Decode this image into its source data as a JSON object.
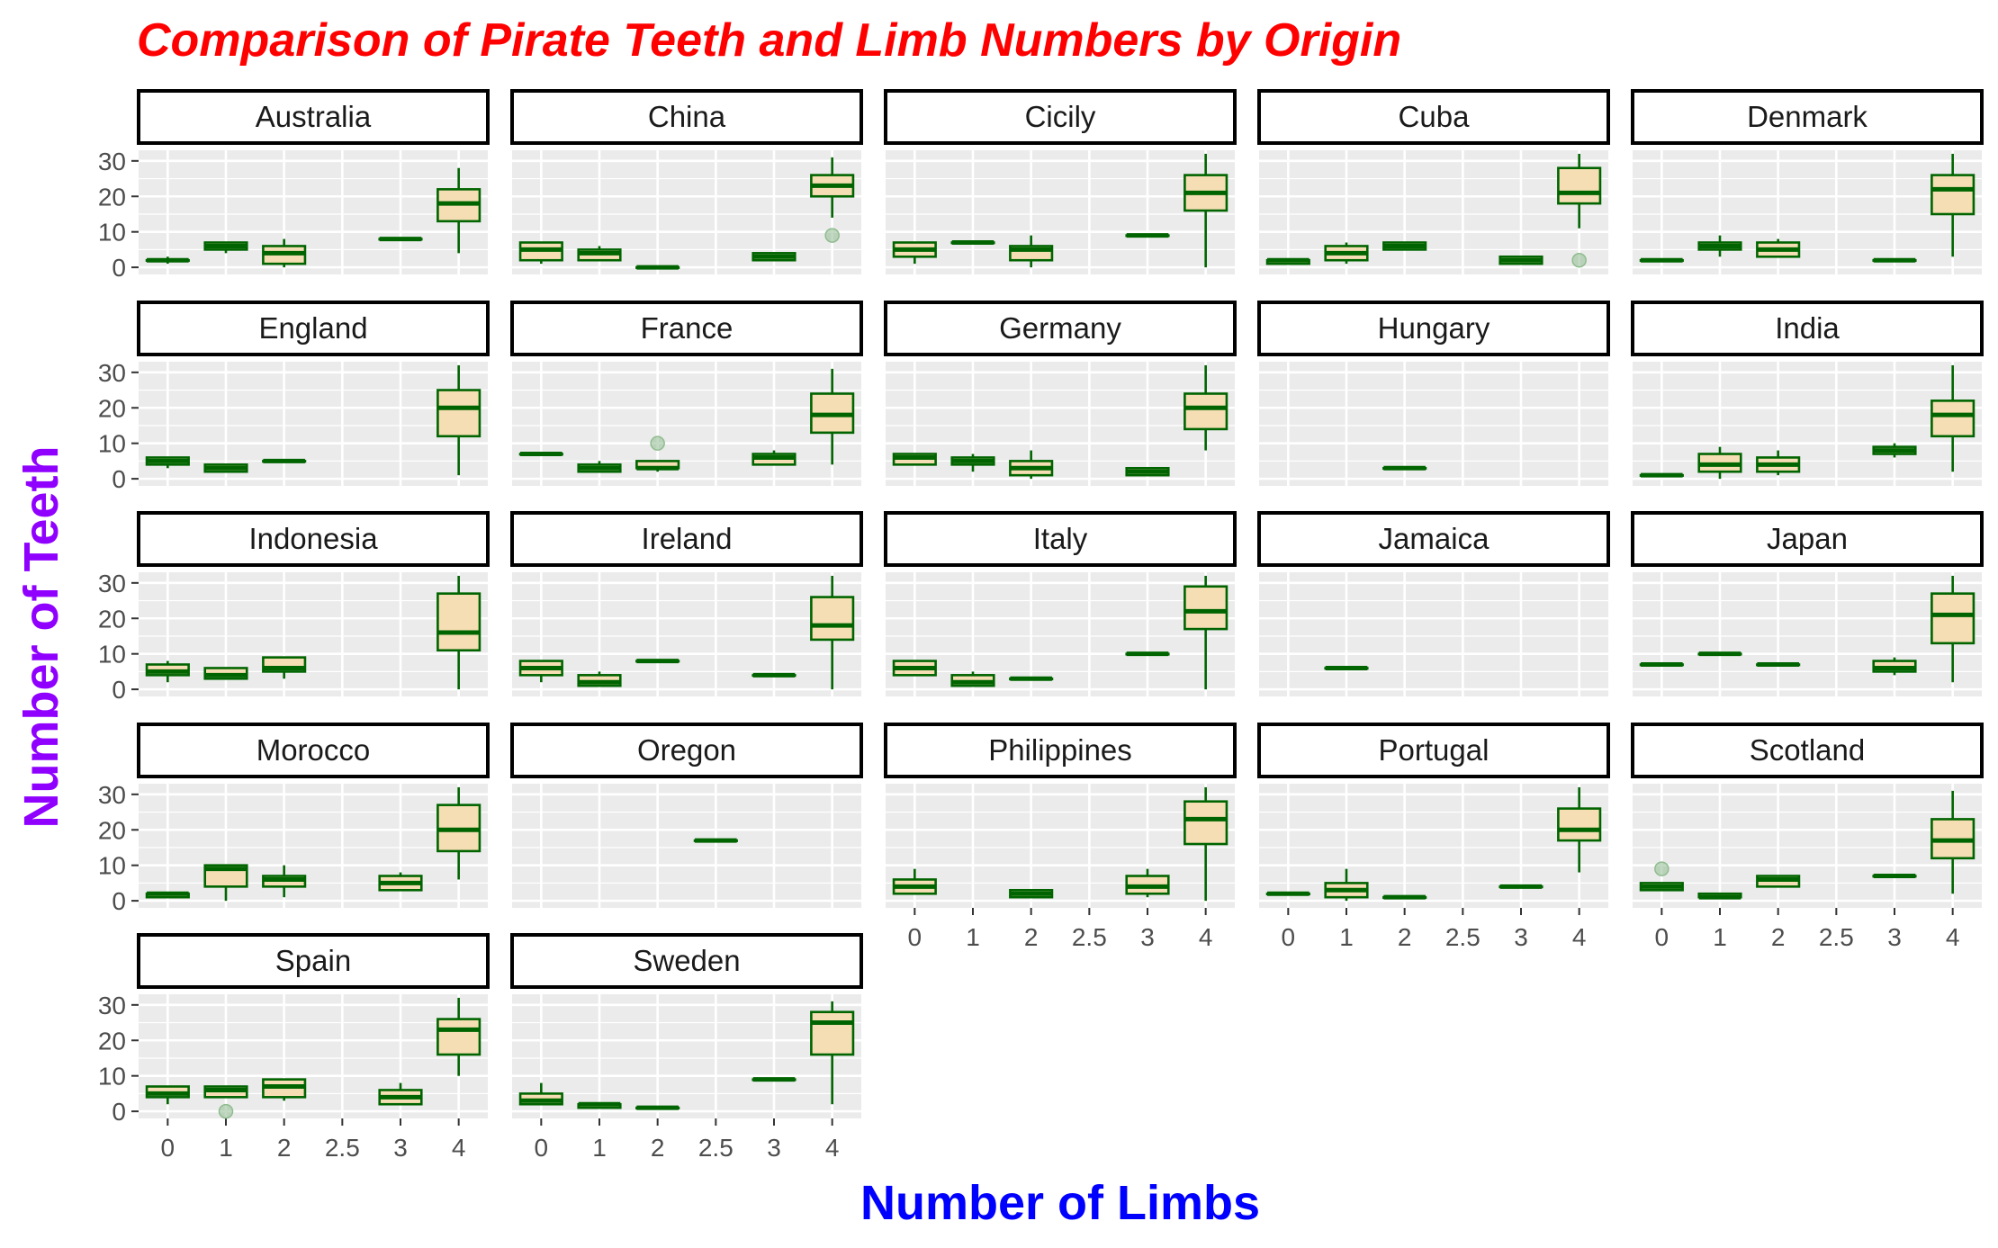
{
  "chart_data": {
    "type": "boxplot-facets",
    "title": "Comparison of Pirate Teeth and Limb Numbers by Origin",
    "xlabel": "Number of Limbs",
    "ylabel": "Number of Teeth",
    "x_ticks": [
      "0",
      "1",
      "2",
      "2.5",
      "3",
      "4"
    ],
    "y_ticks": [
      0,
      10,
      20,
      30
    ],
    "ylim": [
      -2,
      33
    ],
    "colors": {
      "title": "#ff0000",
      "xlabel": "#0000ff",
      "ylabel": "#8f00ff",
      "box_fill": "#f5deb3",
      "box_line": "#006400",
      "panel_bg": "#ebebeb",
      "grid": "#ffffff",
      "outlier": "#8fbc8f"
    },
    "panels": [
      {
        "name": "Australia",
        "boxes": [
          {
            "x": "0",
            "min": 1,
            "q1": 2,
            "median": 2,
            "q3": 2,
            "max": 3
          },
          {
            "x": "1",
            "min": 4,
            "q1": 5,
            "median": 6,
            "q3": 7,
            "max": 7
          },
          {
            "x": "2",
            "min": 0,
            "q1": 1,
            "median": 4,
            "q3": 6,
            "max": 8
          },
          {
            "x": "3",
            "min": 8,
            "q1": 8,
            "median": 8,
            "q3": 8,
            "max": 8
          },
          {
            "x": "4",
            "min": 4,
            "q1": 13,
            "median": 18,
            "q3": 22,
            "max": 28
          }
        ]
      },
      {
        "name": "China",
        "boxes": [
          {
            "x": "0",
            "min": 1,
            "q1": 2,
            "median": 5,
            "q3": 7,
            "max": 7
          },
          {
            "x": "1",
            "min": 2,
            "q1": 2,
            "median": 4,
            "q3": 5,
            "max": 6
          },
          {
            "x": "2",
            "min": 0,
            "q1": 0,
            "median": 0,
            "q3": 0,
            "max": 0
          },
          {
            "x": "3",
            "min": 2,
            "q1": 2,
            "median": 3,
            "q3": 4,
            "max": 4
          },
          {
            "x": "4",
            "min": 14,
            "q1": 20,
            "median": 23,
            "q3": 26,
            "max": 31,
            "outliers": [
              9
            ]
          }
        ]
      },
      {
        "name": "Cicily",
        "boxes": [
          {
            "x": "0",
            "min": 1,
            "q1": 3,
            "median": 5,
            "q3": 7,
            "max": 7
          },
          {
            "x": "1",
            "min": 7,
            "q1": 7,
            "median": 7,
            "q3": 7,
            "max": 7
          },
          {
            "x": "2",
            "min": 0,
            "q1": 2,
            "median": 5,
            "q3": 6,
            "max": 9
          },
          {
            "x": "3",
            "min": 9,
            "q1": 9,
            "median": 9,
            "q3": 9,
            "max": 9
          },
          {
            "x": "4",
            "min": 0,
            "q1": 16,
            "median": 21,
            "q3": 26,
            "max": 32
          }
        ]
      },
      {
        "name": "Cuba",
        "boxes": [
          {
            "x": "0",
            "min": 1,
            "q1": 1,
            "median": 2,
            "q3": 2,
            "max": 2
          },
          {
            "x": "1",
            "min": 1,
            "q1": 2,
            "median": 4,
            "q3": 6,
            "max": 7
          },
          {
            "x": "2",
            "min": 5,
            "q1": 5,
            "median": 6,
            "q3": 7,
            "max": 7
          },
          {
            "x": "3",
            "min": 1,
            "q1": 1,
            "median": 2,
            "q3": 3,
            "max": 3
          },
          {
            "x": "4",
            "min": 11,
            "q1": 18,
            "median": 21,
            "q3": 28,
            "max": 32,
            "outliers": [
              2
            ]
          }
        ]
      },
      {
        "name": "Denmark",
        "boxes": [
          {
            "x": "0",
            "min": 2,
            "q1": 2,
            "median": 2,
            "q3": 2,
            "max": 2
          },
          {
            "x": "1",
            "min": 3,
            "q1": 5,
            "median": 6,
            "q3": 7,
            "max": 9
          },
          {
            "x": "2",
            "min": 3,
            "q1": 3,
            "median": 5,
            "q3": 7,
            "max": 8
          },
          {
            "x": "3",
            "min": 2,
            "q1": 2,
            "median": 2,
            "q3": 2,
            "max": 2
          },
          {
            "x": "4",
            "min": 3,
            "q1": 15,
            "median": 22,
            "q3": 26,
            "max": 32
          }
        ]
      },
      {
        "name": "England",
        "boxes": [
          {
            "x": "0",
            "min": 3,
            "q1": 4,
            "median": 5,
            "q3": 6,
            "max": 6
          },
          {
            "x": "1",
            "min": 2,
            "q1": 2,
            "median": 3,
            "q3": 4,
            "max": 4
          },
          {
            "x": "2",
            "min": 5,
            "q1": 5,
            "median": 5,
            "q3": 5,
            "max": 5
          },
          {
            "x": "4",
            "min": 1,
            "q1": 12,
            "median": 20,
            "q3": 25,
            "max": 32
          }
        ]
      },
      {
        "name": "France",
        "boxes": [
          {
            "x": "0",
            "min": 7,
            "q1": 7,
            "median": 7,
            "q3": 7,
            "max": 7
          },
          {
            "x": "1",
            "min": 2,
            "q1": 2,
            "median": 3,
            "q3": 4,
            "max": 5
          },
          {
            "x": "2",
            "min": 2,
            "q1": 3,
            "median": 3,
            "q3": 5,
            "max": 5,
            "outliers": [
              10
            ]
          },
          {
            "x": "3",
            "min": 4,
            "q1": 4,
            "median": 6,
            "q3": 7,
            "max": 8
          },
          {
            "x": "4",
            "min": 4,
            "q1": 13,
            "median": 18,
            "q3": 24,
            "max": 31
          }
        ]
      },
      {
        "name": "Germany",
        "boxes": [
          {
            "x": "0",
            "min": 4,
            "q1": 4,
            "median": 6,
            "q3": 7,
            "max": 7
          },
          {
            "x": "1",
            "min": 2,
            "q1": 4,
            "median": 5,
            "q3": 6,
            "max": 7
          },
          {
            "x": "2",
            "min": 0,
            "q1": 1,
            "median": 3,
            "q3": 5,
            "max": 8
          },
          {
            "x": "3",
            "min": 1,
            "q1": 1,
            "median": 2,
            "q3": 3,
            "max": 3
          },
          {
            "x": "4",
            "min": 8,
            "q1": 14,
            "median": 20,
            "q3": 24,
            "max": 32
          }
        ]
      },
      {
        "name": "Hungary",
        "boxes": [
          {
            "x": "2",
            "min": 3,
            "q1": 3,
            "median": 3,
            "q3": 3,
            "max": 3
          }
        ]
      },
      {
        "name": "India",
        "boxes": [
          {
            "x": "0",
            "min": 1,
            "q1": 1,
            "median": 1,
            "q3": 1,
            "max": 1
          },
          {
            "x": "1",
            "min": 0,
            "q1": 2,
            "median": 4,
            "q3": 7,
            "max": 9
          },
          {
            "x": "2",
            "min": 1,
            "q1": 2,
            "median": 4,
            "q3": 6,
            "max": 8
          },
          {
            "x": "3",
            "min": 6,
            "q1": 7,
            "median": 8,
            "q3": 9,
            "max": 10
          },
          {
            "x": "4",
            "min": 2,
            "q1": 12,
            "median": 18,
            "q3": 22,
            "max": 32
          }
        ]
      },
      {
        "name": "Indonesia",
        "boxes": [
          {
            "x": "0",
            "min": 2,
            "q1": 4,
            "median": 5,
            "q3": 7,
            "max": 8
          },
          {
            "x": "1",
            "min": 3,
            "q1": 3,
            "median": 4,
            "q3": 6,
            "max": 6
          },
          {
            "x": "2",
            "min": 3,
            "q1": 5,
            "median": 6,
            "q3": 9,
            "max": 9
          },
          {
            "x": "4",
            "min": 0,
            "q1": 11,
            "median": 16,
            "q3": 27,
            "max": 32
          }
        ]
      },
      {
        "name": "Ireland",
        "boxes": [
          {
            "x": "0",
            "min": 2,
            "q1": 4,
            "median": 6,
            "q3": 8,
            "max": 8
          },
          {
            "x": "1",
            "min": 1,
            "q1": 1,
            "median": 2,
            "q3": 4,
            "max": 5
          },
          {
            "x": "2",
            "min": 8,
            "q1": 8,
            "median": 8,
            "q3": 8,
            "max": 8
          },
          {
            "x": "3",
            "min": 4,
            "q1": 4,
            "median": 4,
            "q3": 4,
            "max": 4
          },
          {
            "x": "4",
            "min": 0,
            "q1": 14,
            "median": 18,
            "q3": 26,
            "max": 32
          }
        ]
      },
      {
        "name": "Italy",
        "boxes": [
          {
            "x": "0",
            "min": 4,
            "q1": 4,
            "median": 6,
            "q3": 8,
            "max": 8
          },
          {
            "x": "1",
            "min": 1,
            "q1": 1,
            "median": 2,
            "q3": 4,
            "max": 5
          },
          {
            "x": "2",
            "min": 3,
            "q1": 3,
            "median": 3,
            "q3": 3,
            "max": 3
          },
          {
            "x": "3",
            "min": 10,
            "q1": 10,
            "median": 10,
            "q3": 10,
            "max": 10
          },
          {
            "x": "4",
            "min": 0,
            "q1": 17,
            "median": 22,
            "q3": 29,
            "max": 32
          }
        ]
      },
      {
        "name": "Jamaica",
        "boxes": [
          {
            "x": "1",
            "min": 6,
            "q1": 6,
            "median": 6,
            "q3": 6,
            "max": 6
          }
        ]
      },
      {
        "name": "Japan",
        "boxes": [
          {
            "x": "0",
            "min": 7,
            "q1": 7,
            "median": 7,
            "q3": 7,
            "max": 7
          },
          {
            "x": "1",
            "min": 10,
            "q1": 10,
            "median": 10,
            "q3": 10,
            "max": 10
          },
          {
            "x": "2",
            "min": 7,
            "q1": 7,
            "median": 7,
            "q3": 7,
            "max": 7
          },
          {
            "x": "3",
            "min": 4,
            "q1": 5,
            "median": 6,
            "q3": 8,
            "max": 9
          },
          {
            "x": "4",
            "min": 2,
            "q1": 13,
            "median": 21,
            "q3": 27,
            "max": 32
          }
        ]
      },
      {
        "name": "Morocco",
        "boxes": [
          {
            "x": "0",
            "min": 1,
            "q1": 1,
            "median": 2,
            "q3": 2,
            "max": 2
          },
          {
            "x": "1",
            "min": 0,
            "q1": 4,
            "median": 9,
            "q3": 10,
            "max": 10
          },
          {
            "x": "2",
            "min": 1,
            "q1": 4,
            "median": 6,
            "q3": 7,
            "max": 10
          },
          {
            "x": "3",
            "min": 3,
            "q1": 3,
            "median": 5,
            "q3": 7,
            "max": 8
          },
          {
            "x": "4",
            "min": 6,
            "q1": 14,
            "median": 20,
            "q3": 27,
            "max": 32
          }
        ]
      },
      {
        "name": "Oregon",
        "boxes": [
          {
            "x": "2.5",
            "min": 17,
            "q1": 17,
            "median": 17,
            "q3": 17,
            "max": 17
          }
        ]
      },
      {
        "name": "Philippines",
        "boxes": [
          {
            "x": "0",
            "min": 2,
            "q1": 2,
            "median": 4,
            "q3": 6,
            "max": 9
          },
          {
            "x": "2",
            "min": 1,
            "q1": 1,
            "median": 2,
            "q3": 3,
            "max": 3
          },
          {
            "x": "3",
            "min": 1,
            "q1": 2,
            "median": 4,
            "q3": 7,
            "max": 9
          },
          {
            "x": "4",
            "min": 0,
            "q1": 16,
            "median": 23,
            "q3": 28,
            "max": 32
          }
        ]
      },
      {
        "name": "Portugal",
        "boxes": [
          {
            "x": "0",
            "min": 2,
            "q1": 2,
            "median": 2,
            "q3": 2,
            "max": 2
          },
          {
            "x": "1",
            "min": 0,
            "q1": 1,
            "median": 3,
            "q3": 5,
            "max": 9
          },
          {
            "x": "2",
            "min": 1,
            "q1": 1,
            "median": 1,
            "q3": 1,
            "max": 1
          },
          {
            "x": "3",
            "min": 4,
            "q1": 4,
            "median": 4,
            "q3": 4,
            "max": 4
          },
          {
            "x": "4",
            "min": 8,
            "q1": 17,
            "median": 20,
            "q3": 26,
            "max": 32
          }
        ]
      },
      {
        "name": "Scotland",
        "boxes": [
          {
            "x": "0",
            "min": 3,
            "q1": 3,
            "median": 4,
            "q3": 5,
            "max": 5,
            "outliers": [
              9
            ]
          },
          {
            "x": "1",
            "min": 1,
            "q1": 1,
            "median": 1,
            "q3": 2,
            "max": 2
          },
          {
            "x": "2",
            "min": 4,
            "q1": 4,
            "median": 6,
            "q3": 7,
            "max": 7
          },
          {
            "x": "3",
            "min": 7,
            "q1": 7,
            "median": 7,
            "q3": 7,
            "max": 7
          },
          {
            "x": "4",
            "min": 2,
            "q1": 12,
            "median": 17,
            "q3": 23,
            "max": 31
          }
        ]
      },
      {
        "name": "Spain",
        "boxes": [
          {
            "x": "0",
            "min": 2,
            "q1": 4,
            "median": 5,
            "q3": 7,
            "max": 7
          },
          {
            "x": "1",
            "min": 4,
            "q1": 4,
            "median": 6,
            "q3": 7,
            "max": 7,
            "outliers": [
              0
            ]
          },
          {
            "x": "2",
            "min": 3,
            "q1": 4,
            "median": 7,
            "q3": 9,
            "max": 9
          },
          {
            "x": "3",
            "min": 2,
            "q1": 2,
            "median": 4,
            "q3": 6,
            "max": 8
          },
          {
            "x": "4",
            "min": 10,
            "q1": 16,
            "median": 23,
            "q3": 26,
            "max": 32
          }
        ]
      },
      {
        "name": "Sweden",
        "boxes": [
          {
            "x": "0",
            "min": 2,
            "q1": 2,
            "median": 3,
            "q3": 5,
            "max": 8
          },
          {
            "x": "1",
            "min": 1,
            "q1": 1,
            "median": 2,
            "q3": 2,
            "max": 2
          },
          {
            "x": "2",
            "min": 1,
            "q1": 1,
            "median": 1,
            "q3": 1,
            "max": 1
          },
          {
            "x": "3",
            "min": 9,
            "q1": 9,
            "median": 9,
            "q3": 9,
            "max": 9
          },
          {
            "x": "4",
            "min": 2,
            "q1": 16,
            "median": 25,
            "q3": 28,
            "max": 31
          }
        ]
      }
    ]
  }
}
